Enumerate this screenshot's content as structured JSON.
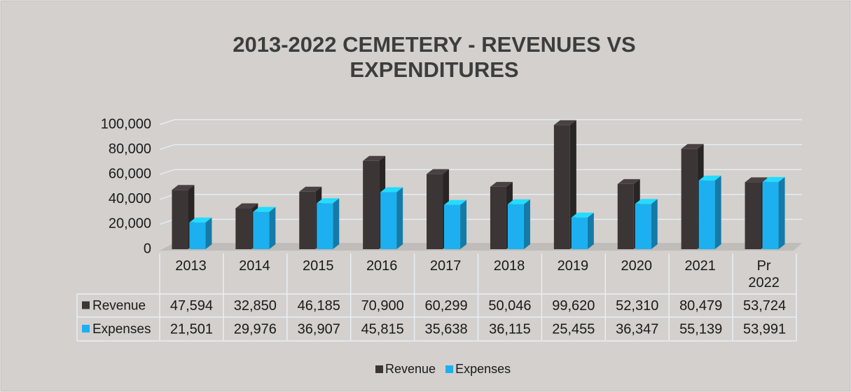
{
  "chart_data": {
    "type": "bar3d",
    "title": "2013-2022 CEMETERY - REVENUES VS EXPENDITURES",
    "categories": [
      "2013",
      "2014",
      "2015",
      "2016",
      "2017",
      "2018",
      "2019",
      "2020",
      "2021",
      "Pr 2022"
    ],
    "series": [
      {
        "name": "Revenue",
        "color": "#3b3535",
        "values": [
          47594,
          32850,
          46185,
          70900,
          60299,
          50046,
          99620,
          52310,
          80479,
          53724
        ],
        "value_labels": [
          "47,594",
          "32,850",
          "46,185",
          "70,900",
          "60,299",
          "50,046",
          "99,620",
          "52,310",
          "80,479",
          "53,724"
        ]
      },
      {
        "name": "Expenses",
        "color": "#1cb0f0",
        "values": [
          21501,
          29976,
          36907,
          45815,
          35638,
          36115,
          25455,
          36347,
          55139,
          53991
        ],
        "value_labels": [
          "21,501",
          "29,976",
          "36,907",
          "45,815",
          "35,638",
          "36,115",
          "25,455",
          "36,347",
          "55,139",
          "53,991"
        ]
      }
    ],
    "ylim": [
      0,
      100000
    ],
    "yticks": [
      0,
      {
        "value": 20000,
        "label": "20,000"
      },
      {
        "value": 40000,
        "label": "40,000"
      },
      {
        "value": 60000,
        "label": "60,000"
      },
      {
        "value": 80000,
        "label": "80,000"
      },
      {
        "value": 100000,
        "label": "100,000"
      }
    ],
    "grid": true,
    "legend": "bottom",
    "data_table": true
  }
}
